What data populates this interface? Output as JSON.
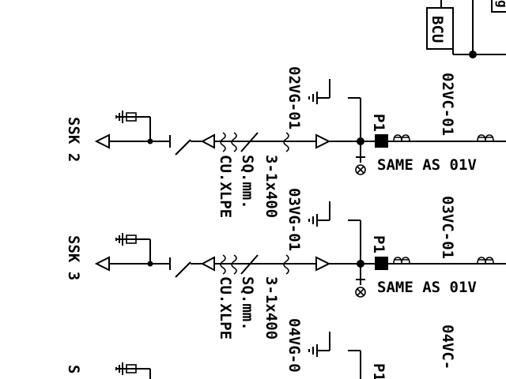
{
  "top": {
    "bcu_label": "BCU",
    "cut_label": "g"
  },
  "feeders": [
    {
      "ssk_label": "SSK 2",
      "vg_label": "02VG-01",
      "vc_label": "02VC-01",
      "p_label": "P1",
      "cable_size": "3-1x400",
      "cable_unit": "SQ.mm.",
      "cable_type": "CU.XLPE",
      "same_as": "SAME AS 01V"
    },
    {
      "ssk_label": "SSK 3",
      "vg_label": "03VG-01",
      "vc_label": "03VC-01",
      "p_label": "P1",
      "cable_size": "3-1x400",
      "cable_unit": "SQ.mm.",
      "cable_type": "CU.XLPE",
      "same_as": "SAME AS 01V"
    },
    {
      "ssk_label": "S",
      "vg_label": "04VG-0",
      "vc_label": "04VC-",
      "p_label": "P1"
    }
  ],
  "colors": {
    "line": "#000000",
    "background": "#ffffff"
  }
}
